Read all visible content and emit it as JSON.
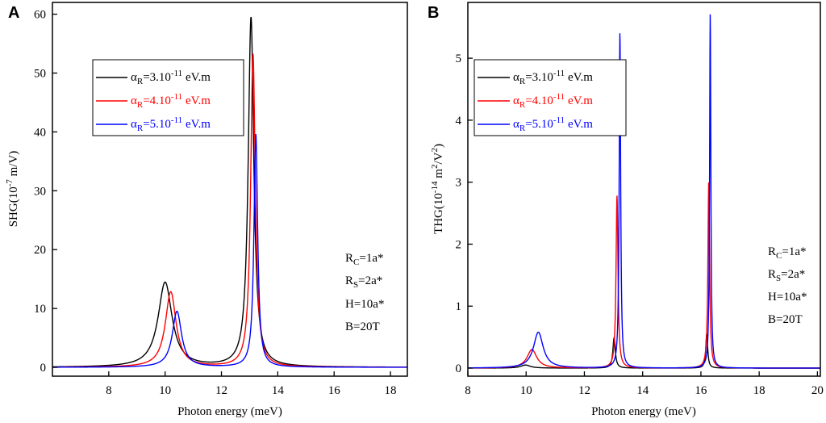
{
  "chart_data": [
    {
      "type": "line",
      "panel_label": "A",
      "xlabel": "Photon energy (meV)",
      "ylabel": {
        "main": "SHG(10",
        "sup": "-7",
        "tail": " m/V)"
      },
      "xlim": [
        6,
        18.6
      ],
      "ylim": [
        -1.5,
        62
      ],
      "xticks": [
        8,
        10,
        12,
        14,
        16,
        18
      ],
      "yticks": [
        0,
        10,
        20,
        30,
        40,
        50,
        60
      ],
      "params": [
        "R_C=1a*",
        "R_S=2a*",
        "H=10a*",
        "B=20T"
      ],
      "series": [
        {
          "name": "αR=3.10-11 eV.m",
          "legend": {
            "a": "α",
            "sub": "R",
            "mid": "=3.10",
            "sup": "-11",
            "tail": " eV.m"
          },
          "color": "#000000",
          "peaks": [
            {
              "x0": 10.0,
              "amp": 14.4,
              "gamma": 0.3
            },
            {
              "x0": 13.05,
              "amp": 59.4,
              "gamma": 0.12
            }
          ]
        },
        {
          "name": "αR=4.10-11 eV.m",
          "legend": {
            "a": "α",
            "sub": "R",
            "mid": "=4.10",
            "sup": "-11",
            "tail": " eV.m"
          },
          "color": "#ff0000",
          "peaks": [
            {
              "x0": 10.2,
              "amp": 12.8,
              "gamma": 0.23
            },
            {
              "x0": 13.12,
              "amp": 53.2,
              "gamma": 0.1
            }
          ]
        },
        {
          "name": "αR=5.10-11 eV.m",
          "legend": {
            "a": "α",
            "sub": "R",
            "mid": "=5.10",
            "sup": "-11",
            "tail": " eV.m"
          },
          "color": "#0000ff",
          "peaks": [
            {
              "x0": 10.42,
              "amp": 9.5,
              "gamma": 0.2
            },
            {
              "x0": 13.22,
              "amp": 39.6,
              "gamma": 0.08
            }
          ]
        }
      ]
    },
    {
      "type": "line",
      "panel_label": "B",
      "xlabel": "Photon energy (meV)",
      "ylabel": {
        "main": "THG(10",
        "sup": "-14",
        "tail": " m",
        "sup2": "2",
        "tail2": "/V",
        "sup3": "2",
        "tail3": ")"
      },
      "xlim": [
        8,
        20.1
      ],
      "ylim": [
        -0.13,
        5.9
      ],
      "xticks": [
        8,
        10,
        12,
        14,
        16,
        18,
        20
      ],
      "yticks": [
        0,
        1,
        2,
        3,
        4,
        5
      ],
      "params": [
        "R_C=1a*",
        "R_S=2a*",
        "H=10a*",
        "B=20T"
      ],
      "series": [
        {
          "name": "αR=3.10-11 eV.m",
          "legend": {
            "a": "α",
            "sub": "R",
            "mid": "=3.10",
            "sup": "-11",
            "tail": " eV.m"
          },
          "color": "#000000",
          "peaks": [
            {
              "x0": 9.98,
              "amp": 0.05,
              "gamma": 0.2
            },
            {
              "x0": 13.02,
              "amp": 0.49,
              "gamma": 0.05
            },
            {
              "x0": 16.2,
              "amp": 0.55,
              "gamma": 0.04
            }
          ]
        },
        {
          "name": "αR=4.10-11 eV.m",
          "legend": {
            "a": "α",
            "sub": "R",
            "mid": "=4.10",
            "sup": "-11",
            "tail": " eV.m"
          },
          "color": "#ff0000",
          "peaks": [
            {
              "x0": 10.2,
              "amp": 0.3,
              "gamma": 0.2
            },
            {
              "x0": 13.12,
              "amp": 2.78,
              "gamma": 0.04
            },
            {
              "x0": 16.27,
              "amp": 3.02,
              "gamma": 0.035
            }
          ]
        },
        {
          "name": "αR=5.10-11 eV.m",
          "legend": {
            "a": "α",
            "sub": "R",
            "mid": "=5.10",
            "sup": "-11",
            "tail": " eV.m"
          },
          "color": "#0000ff",
          "peaks": [
            {
              "x0": 10.42,
              "amp": 0.58,
              "gamma": 0.2
            },
            {
              "x0": 13.22,
              "amp": 5.42,
              "gamma": 0.03
            },
            {
              "x0": 16.32,
              "amp": 5.72,
              "gamma": 0.025
            }
          ]
        }
      ]
    }
  ]
}
